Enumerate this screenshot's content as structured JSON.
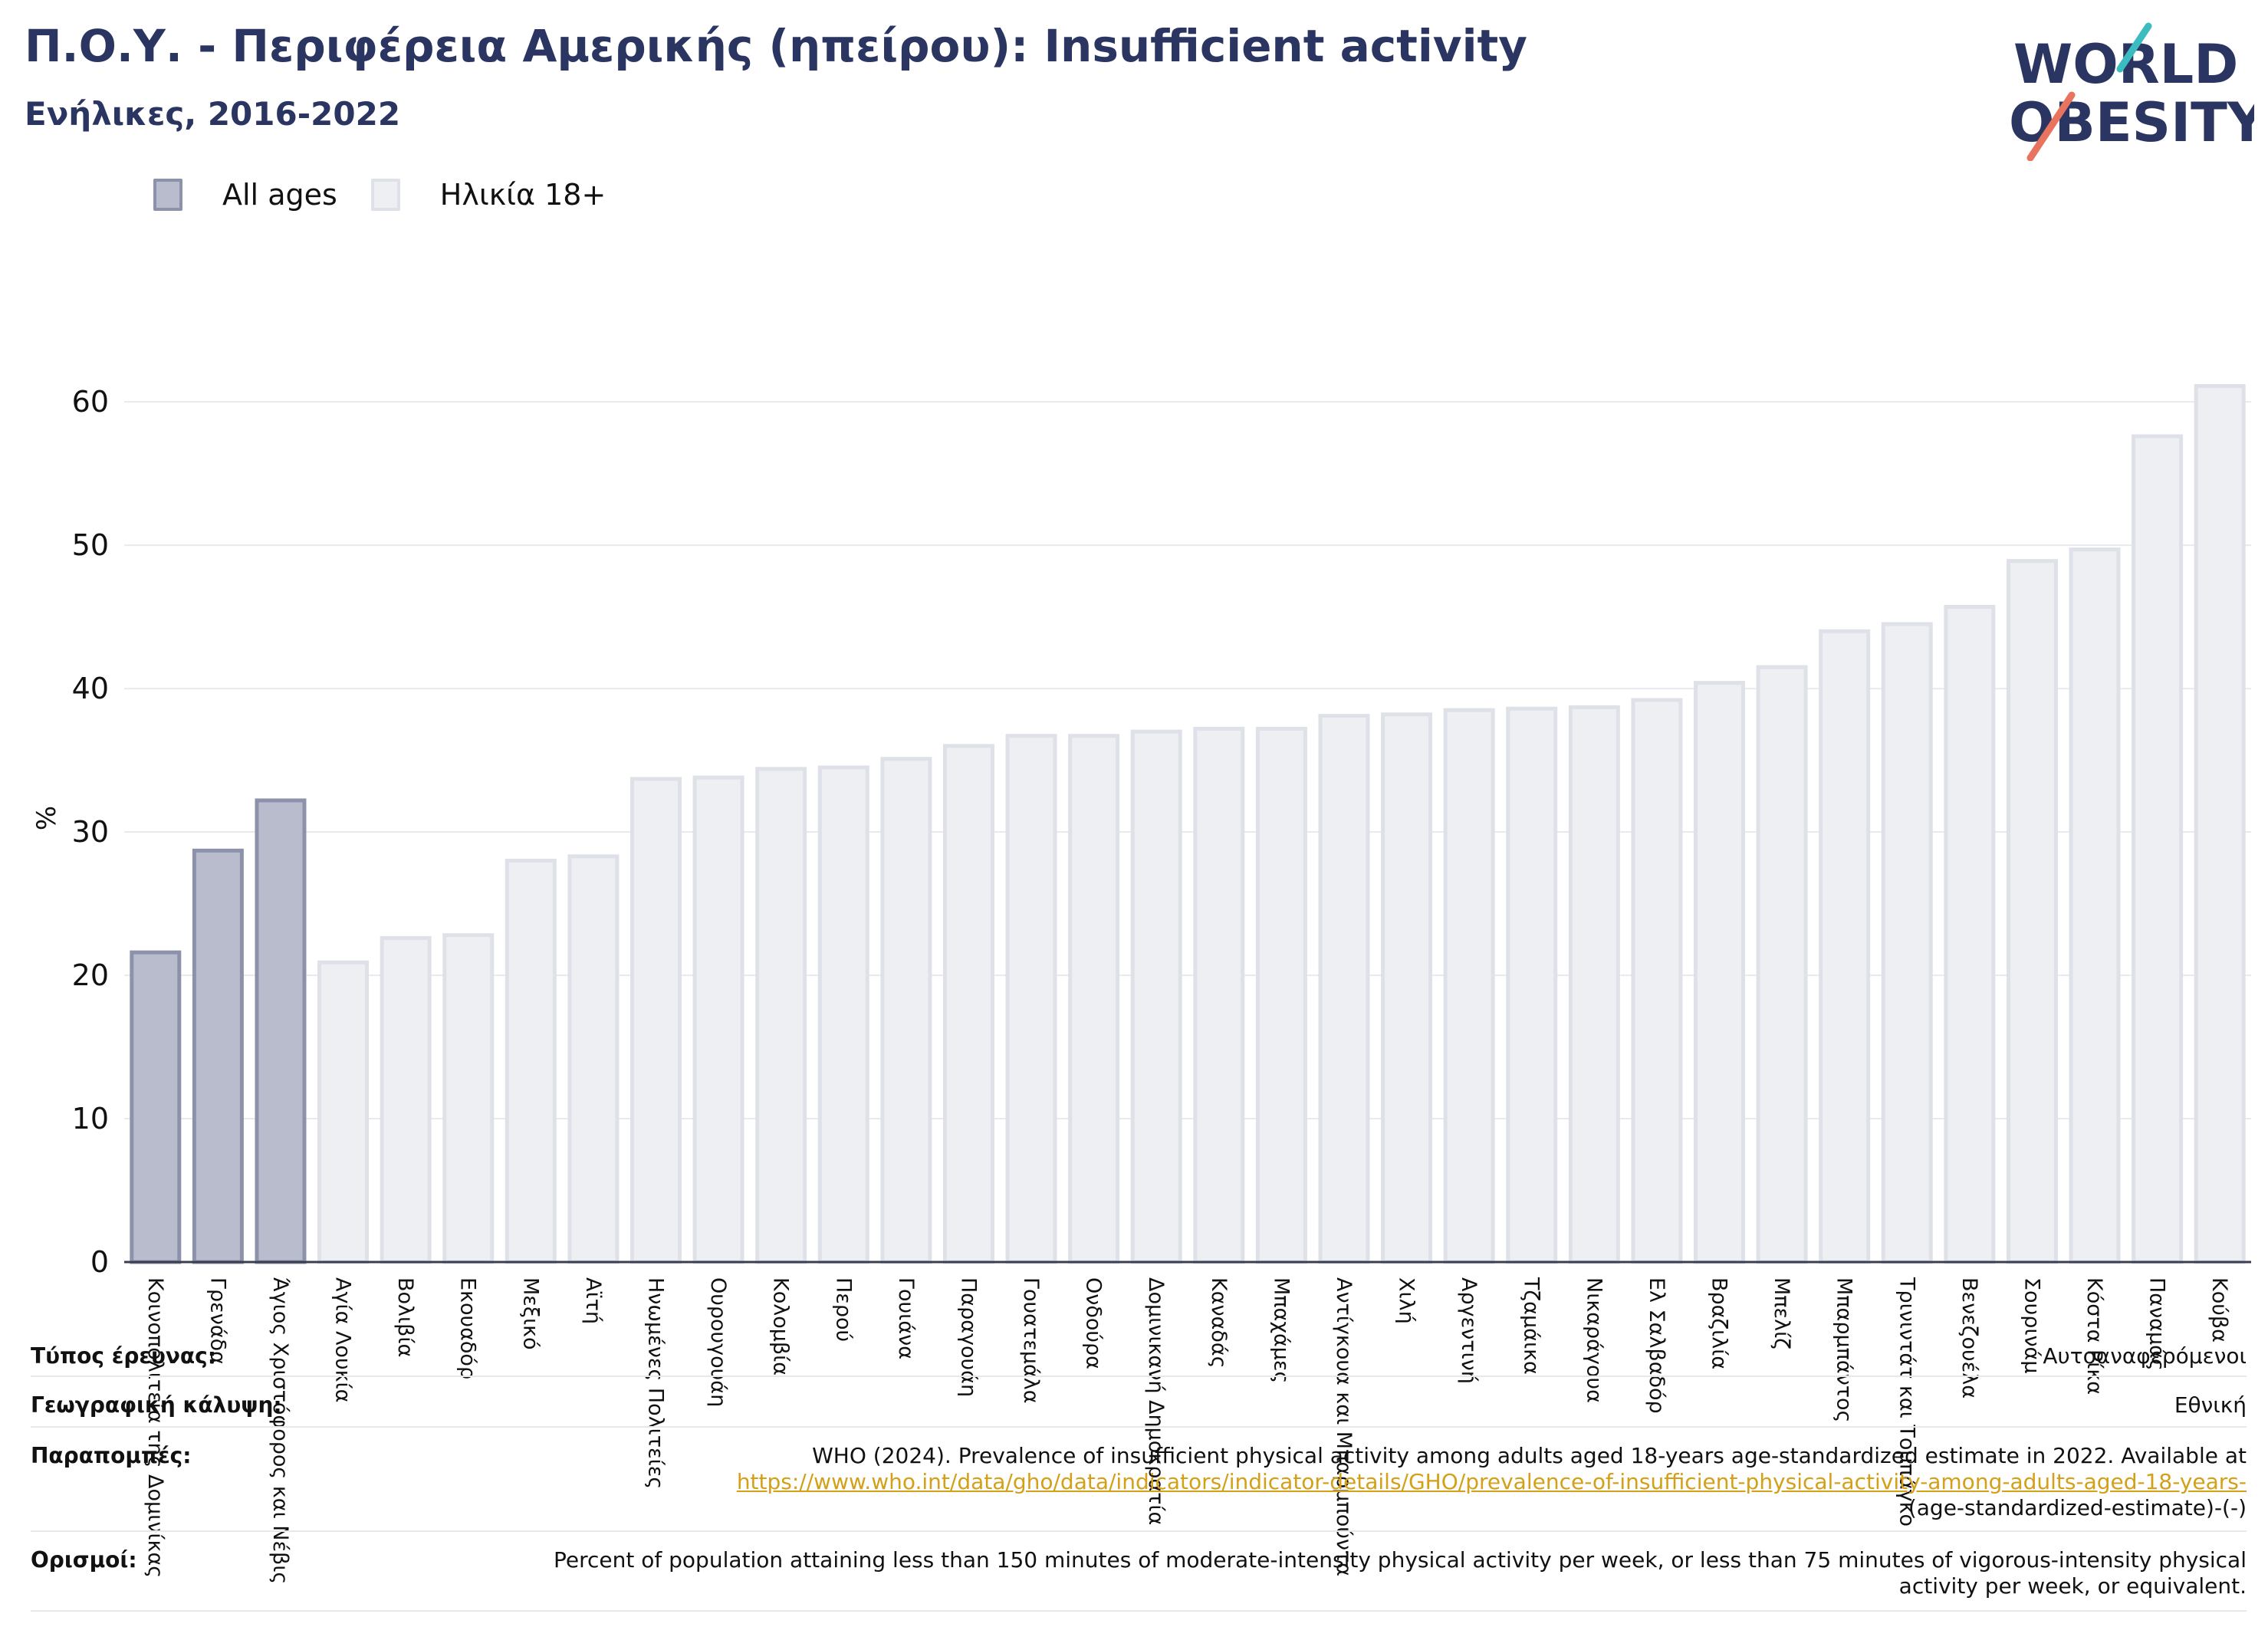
{
  "header": {
    "title": "Π.Ο.Υ. - Περιφέρεια Αμερικής (ηπείρου): Insufficient activity",
    "subtitle": "Ενήλικες, 2016-2022"
  },
  "logo": {
    "line1": "WORLD",
    "line2": "OBESITY"
  },
  "legend": [
    {
      "label": "All ages",
      "color": "#b9bccd"
    },
    {
      "label": "Ηλικία 18+",
      "color": "#eeeff3"
    }
  ],
  "colors": {
    "all_ages_fill": "#b9bccd",
    "all_ages_stroke": "#8d92ab",
    "adult_fill": "#eeeff3",
    "adult_stroke": "#dfe1e8",
    "title": "#2b3561",
    "link": "#d4a017"
  },
  "chart_data": {
    "type": "bar",
    "ylabel": "%",
    "xlabel": "",
    "ylim": [
      0,
      63
    ],
    "yticks": [
      0,
      10,
      20,
      30,
      40,
      50,
      60
    ],
    "grid": true,
    "categories": [
      "Κοινοπολιτεία της Δομινίκας",
      "Γρενάδα",
      "Άγιος Χριστόφορος και Νέβις",
      "Αγία Λουκία",
      "Βολιβία",
      "Εκουαδόρ",
      "Μεξικό",
      "Αϊτή",
      "Ηνωμένες Πολιτείες",
      "Ουρουγουάη",
      "Κολομβία",
      "Περού",
      "Γουιάνα",
      "Παραγουάη",
      "Γουατεμάλα",
      "Ονδούρα",
      "Δομινικανή Δημοκρατία",
      "Καναδάς",
      "Μπαχάμες",
      "Αντίγκουα και Μπαρμπούντα",
      "Χιλή",
      "Αργεντινή",
      "Τζαμάικα",
      "Νικαράγουα",
      "Ελ Σαλβαδόρ",
      "Βραζιλία",
      "Μπελίζ",
      "Μπαρμπάντος",
      "Τρινιντάτ και Τομπάγκο",
      "Βενεζουέλα",
      "Σουρινάμ",
      "Κόστα Ρίκα",
      "Παναμάς",
      "Κούβα"
    ],
    "series": [
      {
        "name": "All ages",
        "values": [
          21.6,
          28.7,
          32.2,
          null,
          null,
          null,
          null,
          null,
          null,
          null,
          null,
          null,
          null,
          null,
          null,
          null,
          null,
          null,
          null,
          null,
          null,
          null,
          null,
          null,
          null,
          null,
          null,
          null,
          null,
          null,
          null,
          null,
          null,
          null
        ]
      },
      {
        "name": "Ηλικία 18+",
        "values": [
          null,
          null,
          null,
          20.9,
          22.6,
          22.8,
          28.0,
          28.3,
          33.7,
          33.8,
          34.4,
          34.5,
          35.1,
          36.0,
          36.7,
          36.7,
          37.0,
          37.2,
          37.2,
          38.1,
          38.2,
          38.5,
          38.6,
          38.7,
          39.2,
          40.4,
          41.5,
          44.0,
          44.5,
          45.7,
          48.9,
          49.7,
          57.6,
          61.1
        ]
      }
    ]
  },
  "meta": {
    "survey_type": {
      "label": "Τύπος έρευνας:",
      "value": "Αυτοαναφερόμενοι"
    },
    "coverage": {
      "label": "Γεωγραφική κάλυψη:",
      "value": "Εθνική"
    },
    "references": {
      "label": "Παραπομπές:",
      "text": "WHO (2024). Prevalence of insufficient physical activity among adults aged 18-years age-standardized estimate in 2022. Available at",
      "link": "https://www.who.int/data/gho/data/indicators/indicator-details/GHO/prevalence-of-insufficient-physical-activity-among-adults-aged-18-years-",
      "tail": "(age-standardized-estimate)-(-)"
    },
    "definitions": {
      "label": "Ορισμοί:",
      "value": "Percent of population attaining less than 150 minutes of moderate-intensity physical activity per week, or less than 75 minutes of vigorous-intensity physical activity per week, or equivalent."
    }
  }
}
